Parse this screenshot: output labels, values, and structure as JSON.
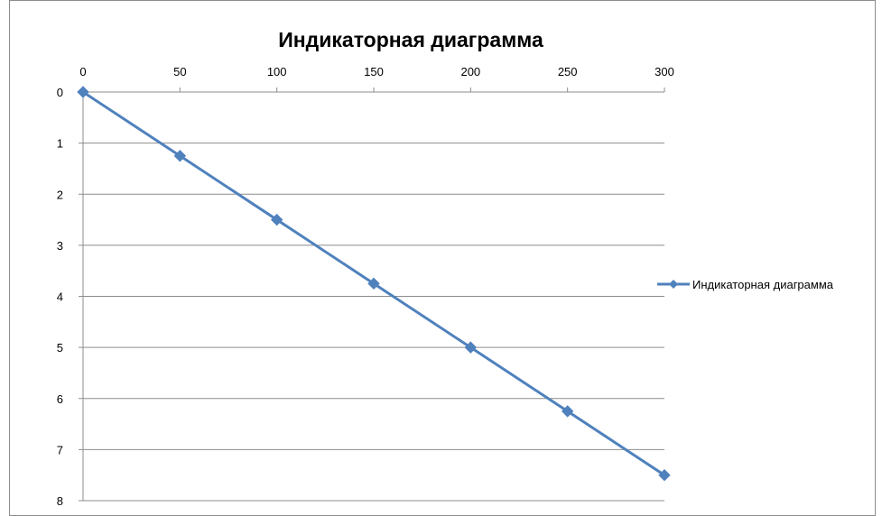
{
  "chart_data": {
    "type": "line",
    "title": "Индикаторная диаграмма",
    "xlabel": "",
    "ylabel": "",
    "x_axis_position": "top",
    "y_axis_inverted": true,
    "xlim": [
      0,
      300
    ],
    "ylim": [
      0,
      8
    ],
    "x_ticks": [
      "0",
      "50",
      "100",
      "150",
      "200",
      "250",
      "300"
    ],
    "y_ticks": [
      "0",
      "1",
      "2",
      "3",
      "4",
      "5",
      "6",
      "7",
      "8"
    ],
    "grid": "horizontal",
    "legend": {
      "position": "right"
    },
    "series": [
      {
        "name": "Индикаторная диаграмма",
        "color": "#4f81bd",
        "marker": "diamond",
        "x": [
          0,
          50,
          100,
          150,
          200,
          250,
          300
        ],
        "y": [
          0,
          1.25,
          2.5,
          3.75,
          5,
          6.25,
          7.5
        ]
      }
    ]
  }
}
